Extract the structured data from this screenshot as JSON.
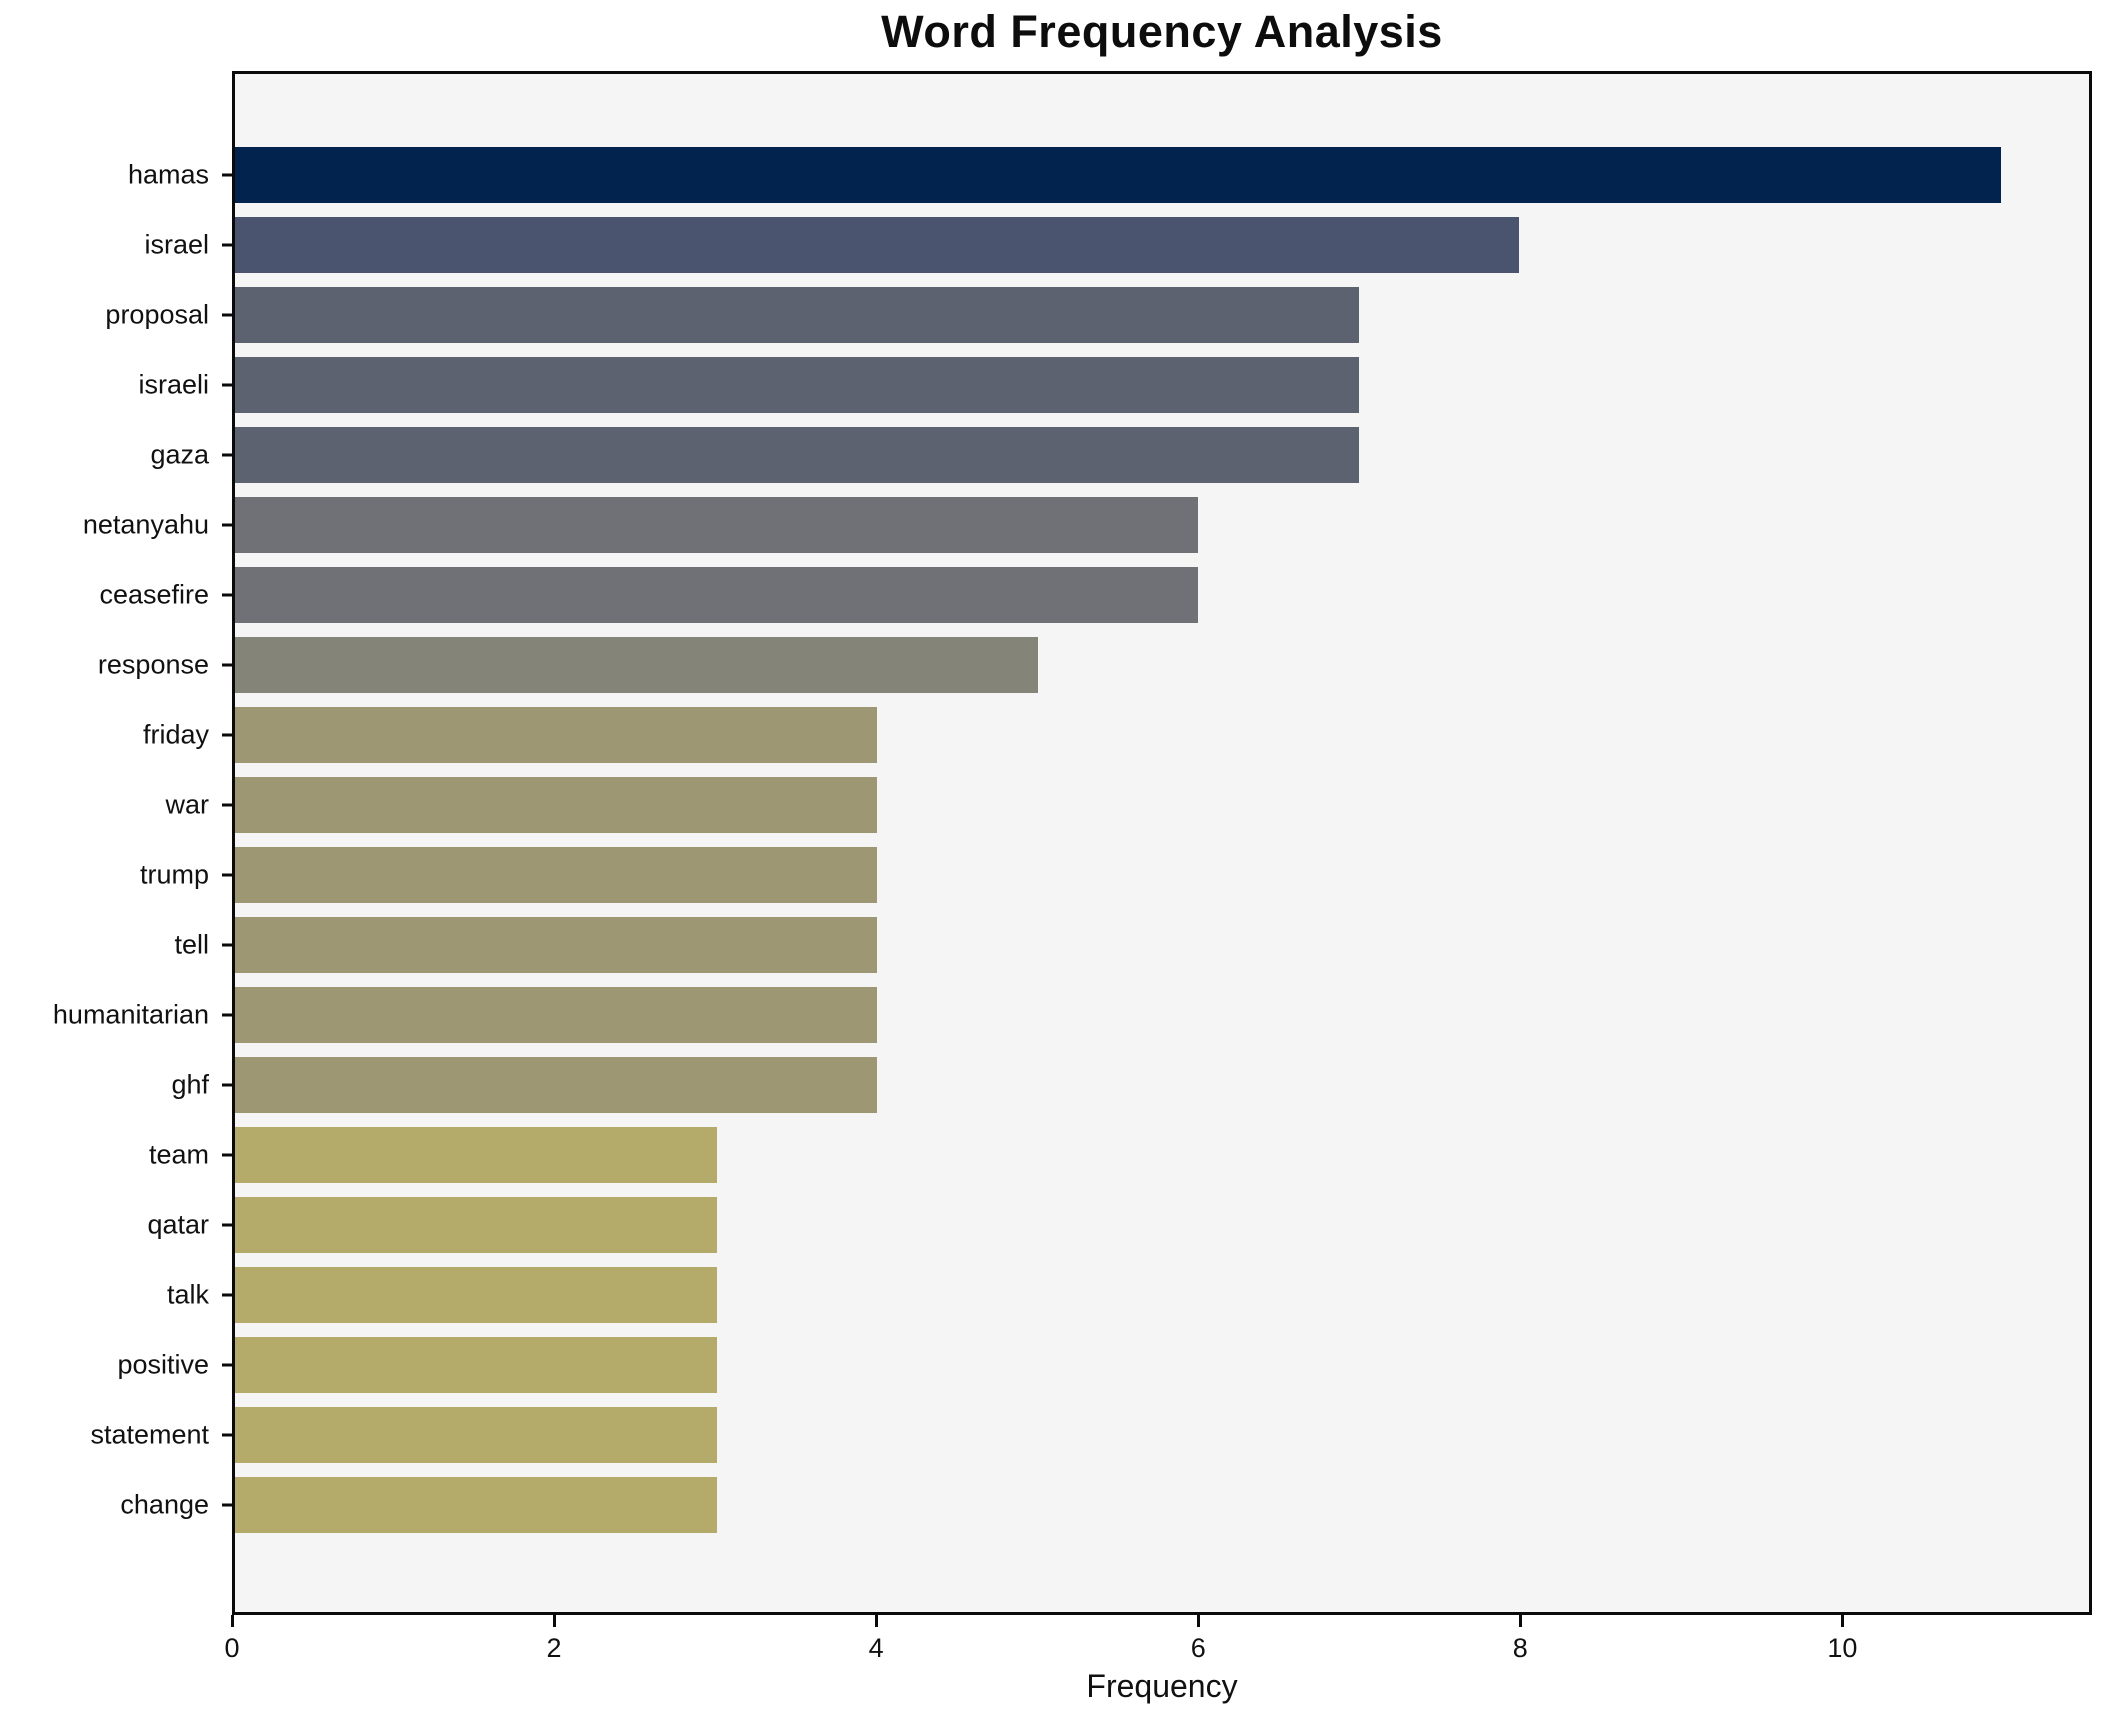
{
  "title": "Word Frequency Analysis",
  "xlabel": "Frequency",
  "colors": {
    "figure_bg": "#ffffff",
    "plot_bg": "#f5f5f6",
    "spine": "#0a0a0a",
    "text": "#111111"
  },
  "chart_data": {
    "type": "bar",
    "orientation": "horizontal",
    "title": "Word Frequency Analysis",
    "xlabel": "Frequency",
    "ylabel": "",
    "categories": [
      "hamas",
      "israel",
      "proposal",
      "israeli",
      "gaza",
      "netanyahu",
      "ceasefire",
      "response",
      "friday",
      "war",
      "trump",
      "tell",
      "humanitarian",
      "ghf",
      "team",
      "qatar",
      "talk",
      "positive",
      "statement",
      "change"
    ],
    "values": [
      11,
      8,
      7,
      7,
      7,
      6,
      6,
      5,
      4,
      4,
      4,
      4,
      4,
      4,
      3,
      3,
      3,
      3,
      3,
      3
    ],
    "bar_colors": [
      "#01234e",
      "#4a546f",
      "#5d6270",
      "#5d6270",
      "#5d6270",
      "#707176",
      "#707176",
      "#858478",
      "#9d9873",
      "#9d9873",
      "#9d9873",
      "#9d9873",
      "#9d9873",
      "#9d9873",
      "#b4aa6a",
      "#b4aa6a",
      "#b4aa6a",
      "#b4aa6a",
      "#b4aa6a",
      "#b4aa6a"
    ],
    "xlim": [
      0,
      11.55
    ],
    "xticks": [
      0,
      2,
      4,
      6,
      8,
      10
    ],
    "grid": false,
    "legend": false,
    "value_labels": false
  }
}
